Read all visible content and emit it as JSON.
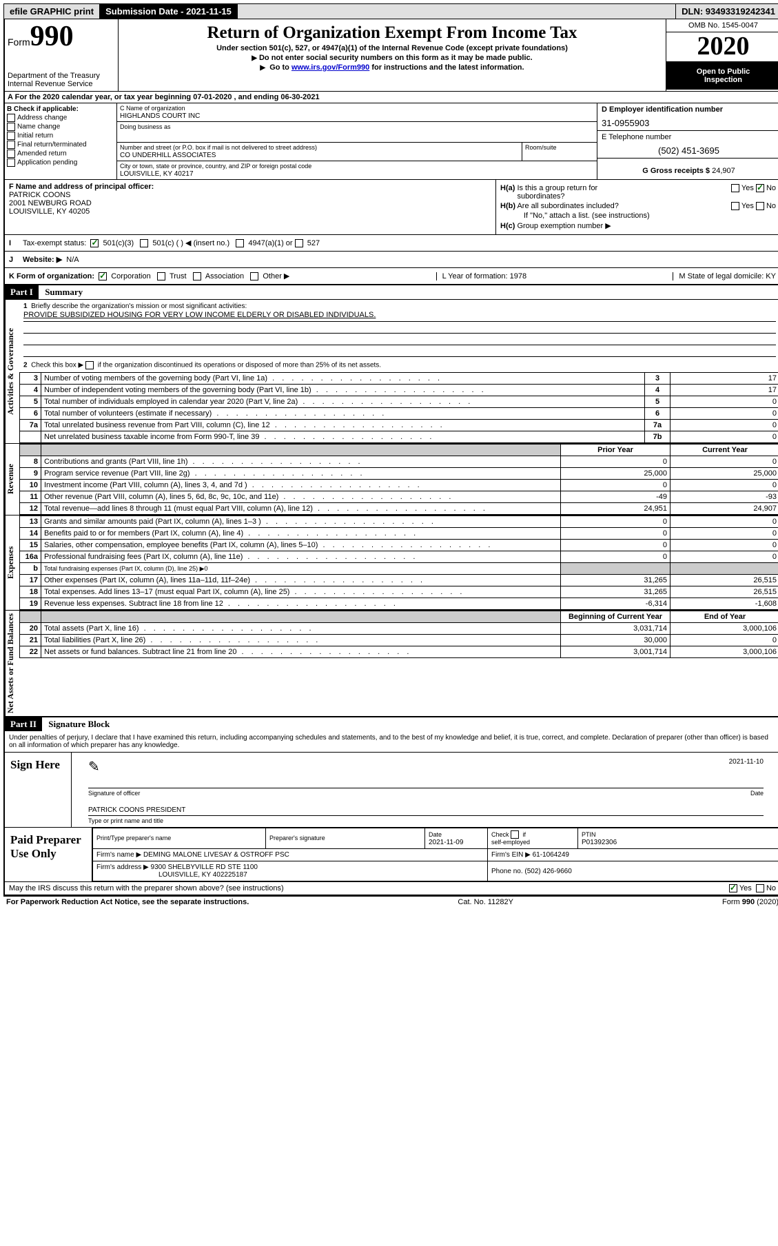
{
  "topbar": {
    "efile": "efile GRAPHIC print",
    "sub_label": "Submission Date - 2021-11-15",
    "dln": "DLN: 93493319242341"
  },
  "header": {
    "form_word": "Form",
    "form_num": "990",
    "dept1": "Department of the Treasury",
    "dept2": "Internal Revenue Service",
    "title": "Return of Organization Exempt From Income Tax",
    "sub1": "Under section 501(c), 527, or 4947(a)(1) of the Internal Revenue Code (except private foundations)",
    "sub2": "Do not enter social security numbers on this form as it may be made public.",
    "sub3_pre": "Go to ",
    "sub3_link": "www.irs.gov/Form990",
    "sub3_post": " for instructions and the latest information.",
    "omb": "OMB No. 1545-0047",
    "year": "2020",
    "open1": "Open to Public",
    "open2": "Inspection"
  },
  "sectionA": "For the 2020 calendar year, or tax year beginning 07-01-2020   , and ending 06-30-2021",
  "checkB": {
    "title": "B Check if applicable:",
    "items": [
      "Address change",
      "Name change",
      "Initial return",
      "Final return/terminated",
      "Amended return",
      "Application pending"
    ]
  },
  "colC": {
    "name_lbl": "C Name of organization",
    "name": "HIGHLANDS COURT INC",
    "dba_lbl": "Doing business as",
    "addr_lbl": "Number and street (or P.O. box if mail is not delivered to street address)",
    "room_lbl": "Room/suite",
    "addr": "CO UNDERHILL ASSOCIATES",
    "city_lbl": "City or town, state or province, country, and ZIP or foreign postal code",
    "city": "LOUISVILLE, KY  40217"
  },
  "colD": {
    "ein_lbl": "D Employer identification number",
    "ein": "31-0955903",
    "tel_lbl": "E Telephone number",
    "tel": "(502) 451-3695",
    "gross_lbl": "G Gross receipts $",
    "gross": "24,907"
  },
  "rowF": {
    "lbl": "F  Name and address of principal officer:",
    "name": "PATRICK COONS",
    "addr1": "2001 NEWBURG ROAD",
    "addr2": "LOUISVILLE, KY  40205"
  },
  "rowH": {
    "ha": "H(a)  Is this a group return for subordinates?",
    "hb": "H(b)  Are all subordinates included?",
    "hb_note": "If \"No,\" attach a list. (see instructions)",
    "hc": "H(c)  Group exemption number ▶",
    "yes": "Yes",
    "no": "No"
  },
  "taxrow": {
    "lbl": "Tax-exempt status:",
    "opt1": "501(c)(3)",
    "opt2": "501(c) (  ) ◀ (insert no.)",
    "opt3": "4947(a)(1) or",
    "opt4": "527"
  },
  "webrow": {
    "lbl": "Website: ▶",
    "val": "N/A"
  },
  "krow": {
    "k": "K Form of organization:",
    "corp": "Corporation",
    "trust": "Trust",
    "assoc": "Association",
    "other": "Other ▶",
    "l": "L Year of formation: 1978",
    "m": "M State of legal domicile: KY"
  },
  "part1": {
    "label": "Part I",
    "title": "Summary",
    "q1": "Briefly describe the organization's mission or most significant activities:",
    "mission": "PROVIDE SUBSIDIZED HOUSING FOR VERY LOW INCOME ELDERLY OR DISABLED INDIVIDUALS.",
    "q2": "Check this box ▶      if the organization discontinued its operations or disposed of more than 25% of its net assets."
  },
  "gov_rows": [
    {
      "n": "3",
      "d": "Number of voting members of the governing body (Part VI, line 1a)",
      "c": "3",
      "v": "17"
    },
    {
      "n": "4",
      "d": "Number of independent voting members of the governing body (Part VI, line 1b)",
      "c": "4",
      "v": "17"
    },
    {
      "n": "5",
      "d": "Total number of individuals employed in calendar year 2020 (Part V, line 2a)",
      "c": "5",
      "v": "0"
    },
    {
      "n": "6",
      "d": "Total number of volunteers (estimate if necessary)",
      "c": "6",
      "v": "0"
    },
    {
      "n": "7a",
      "d": "Total unrelated business revenue from Part VIII, column (C), line 12",
      "c": "7a",
      "v": "0"
    },
    {
      "n": "",
      "d": "Net unrelated business taxable income from Form 990-T, line 39",
      "c": "7b",
      "v": "0"
    }
  ],
  "fin_headers": {
    "prior": "Prior Year",
    "current": "Current Year",
    "boy": "Beginning of Current Year",
    "eoy": "End of Year"
  },
  "rev_rows": [
    {
      "n": "8",
      "d": "Contributions and grants (Part VIII, line 1h)",
      "p": "0",
      "c": "0"
    },
    {
      "n": "9",
      "d": "Program service revenue (Part VIII, line 2g)",
      "p": "25,000",
      "c": "25,000"
    },
    {
      "n": "10",
      "d": "Investment income (Part VIII, column (A), lines 3, 4, and 7d )",
      "p": "0",
      "c": "0"
    },
    {
      "n": "11",
      "d": "Other revenue (Part VIII, column (A), lines 5, 6d, 8c, 9c, 10c, and 11e)",
      "p": "-49",
      "c": "-93"
    },
    {
      "n": "12",
      "d": "Total revenue—add lines 8 through 11 (must equal Part VIII, column (A), line 12)",
      "p": "24,951",
      "c": "24,907"
    }
  ],
  "exp_rows": [
    {
      "n": "13",
      "d": "Grants and similar amounts paid (Part IX, column (A), lines 1–3 )",
      "p": "0",
      "c": "0"
    },
    {
      "n": "14",
      "d": "Benefits paid to or for members (Part IX, column (A), line 4)",
      "p": "0",
      "c": "0"
    },
    {
      "n": "15",
      "d": "Salaries, other compensation, employee benefits (Part IX, column (A), lines 5–10)",
      "p": "0",
      "c": "0"
    },
    {
      "n": "16a",
      "d": "Professional fundraising fees (Part IX, column (A), line 11e)",
      "p": "0",
      "c": "0"
    },
    {
      "n": "b",
      "d": "Total fundraising expenses (Part IX, column (D), line 25) ▶0",
      "p": "",
      "c": "",
      "grey": true
    },
    {
      "n": "17",
      "d": "Other expenses (Part IX, column (A), lines 11a–11d, 11f–24e)",
      "p": "31,265",
      "c": "26,515"
    },
    {
      "n": "18",
      "d": "Total expenses. Add lines 13–17 (must equal Part IX, column (A), line 25)",
      "p": "31,265",
      "c": "26,515"
    },
    {
      "n": "19",
      "d": "Revenue less expenses. Subtract line 18 from line 12",
      "p": "-6,314",
      "c": "-1,608"
    }
  ],
  "net_rows": [
    {
      "n": "20",
      "d": "Total assets (Part X, line 16)",
      "p": "3,031,714",
      "c": "3,000,106"
    },
    {
      "n": "21",
      "d": "Total liabilities (Part X, line 26)",
      "p": "30,000",
      "c": "0"
    },
    {
      "n": "22",
      "d": "Net assets or fund balances. Subtract line 21 from line 20",
      "p": "3,001,714",
      "c": "3,000,106"
    }
  ],
  "side_labels": {
    "gov": "Activities & Governance",
    "rev": "Revenue",
    "exp": "Expenses",
    "net": "Net Assets or Fund Balances"
  },
  "part2": {
    "label": "Part II",
    "title": "Signature Block",
    "perjury": "Under penalties of perjury, I declare that I have examined this return, including accompanying schedules and statements, and to the best of my knowledge and belief, it is true, correct, and complete. Declaration of preparer (other than officer) is based on all information of which preparer has any knowledge."
  },
  "sign": {
    "here": "Sign Here",
    "sig_of": "Signature of officer",
    "date": "2021-11-10",
    "date_lbl": "Date",
    "name": "PATRICK COONS PRESIDENT",
    "name_lbl": "Type or print name and title"
  },
  "prep": {
    "label": "Paid Preparer Use Only",
    "h1": "Print/Type preparer's name",
    "h2": "Preparer's signature",
    "h3": "Date",
    "h3v": "2021-11-09",
    "h4": "Check       if self-employed",
    "h5": "PTIN",
    "h5v": "P01392306",
    "firm_lbl": "Firm's name    ▶",
    "firm": "DEMING MALONE LIVESAY & OSTROFF PSC",
    "ein_lbl": "Firm's EIN ▶",
    "ein": "61-1064249",
    "addr_lbl": "Firm's address ▶",
    "addr1": "9300 SHELBYVILLE RD STE 1100",
    "addr2": "LOUISVILLE, KY  402225187",
    "phone_lbl": "Phone no.",
    "phone": "(502) 426-9660",
    "discuss": "May the IRS discuss this return with the preparer shown above? (see instructions)"
  },
  "footer": {
    "pra": "For Paperwork Reduction Act Notice, see the separate instructions.",
    "cat": "Cat. No. 11282Y",
    "form": "Form 990 (2020)"
  },
  "style": {
    "link_color": "#0000cc",
    "check_color": "#007000"
  }
}
